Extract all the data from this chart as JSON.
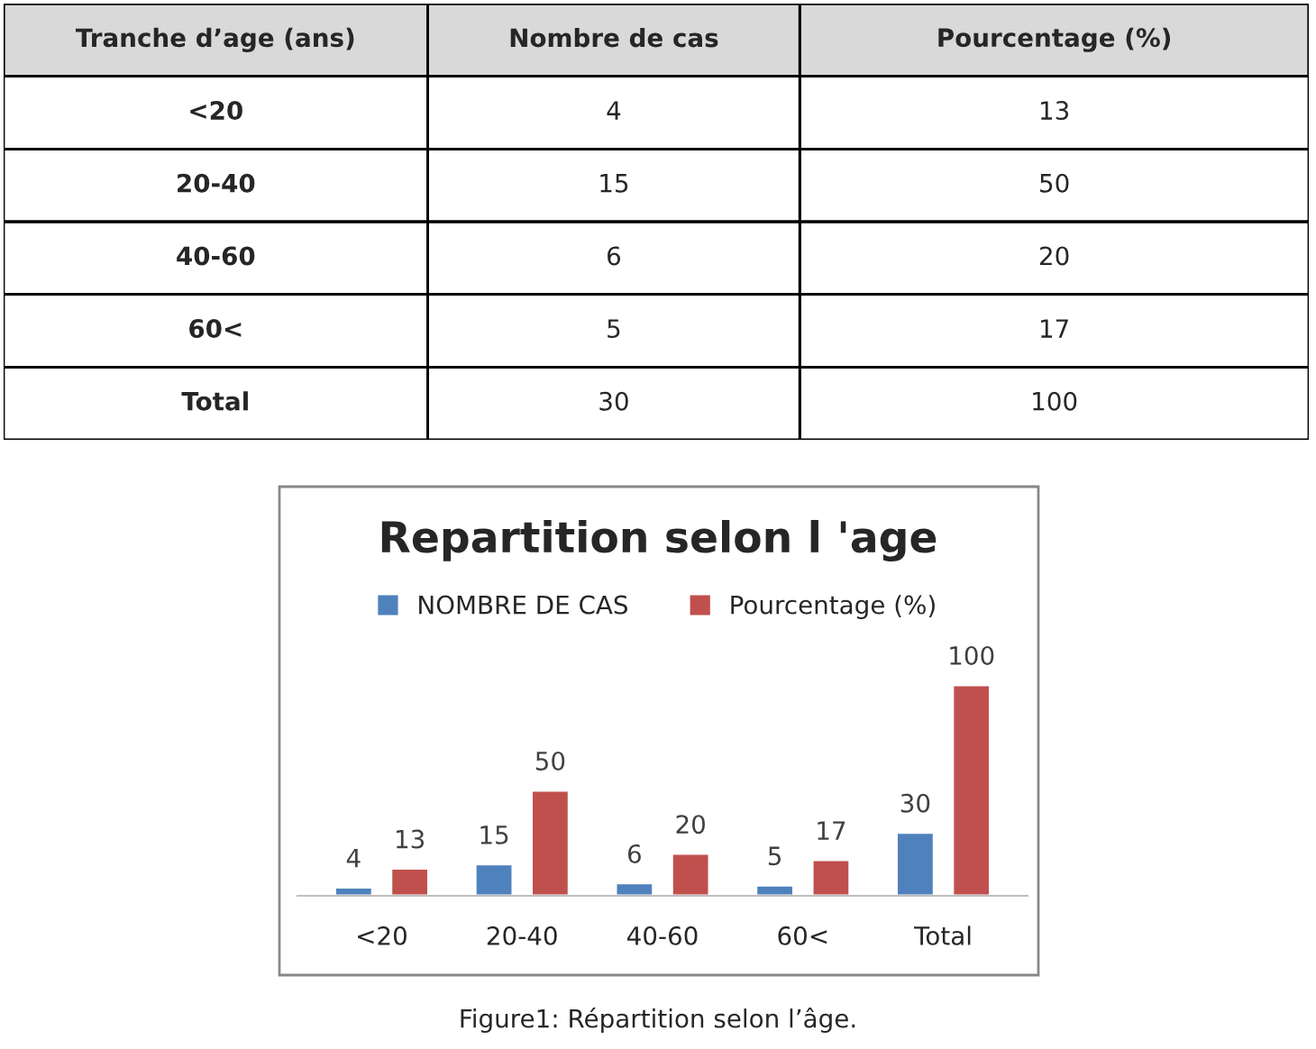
{
  "chart_data": [
    {
      "type": "other",
      "annotations": [
        "Tranche d’age (ans)",
        "Nombre de cas",
        "Pourcentage (%)",
        "<20",
        "4",
        "13",
        "20-40",
        "15",
        "50",
        "40-60",
        "6",
        "20",
        "60<",
        "5",
        "17",
        "Total",
        "30",
        "100"
      ]
    },
    {
      "type": "bar",
      "title": "Repartition selon l 'age",
      "categories": [
        "<20",
        "20-40",
        "40-60",
        "60<",
        "Total"
      ],
      "series": [
        {
          "name": "NOMBRE DE CAS",
          "color": "#4f81bd",
          "values": [
            4,
            15,
            6,
            5,
            30
          ]
        },
        {
          "name": "Pourcentage (%)",
          "color": "#c0504d",
          "values": [
            13,
            50,
            20,
            17,
            100
          ]
        }
      ],
      "data_labels": true,
      "legend": "top",
      "grid": false,
      "annotations": [
        "Figure1: Répartition selon l’âge."
      ]
    }
  ]
}
